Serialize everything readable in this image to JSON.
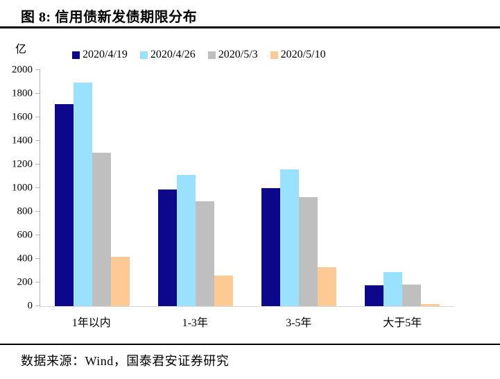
{
  "page": {
    "title": "图 8: 信用债新发债期限分布",
    "source_note": "数据来源：Wind，国泰君安证券研究"
  },
  "chart_data": {
    "type": "bar",
    "title": "信用债新发债期限分布",
    "unit_label": "亿",
    "categories": [
      "1年以内",
      "1-3年",
      "3-5年",
      "大于5年"
    ],
    "series": [
      {
        "name": "2020/4/19",
        "color": "#0d078c",
        "values": [
          1710,
          990,
          1000,
          175
        ]
      },
      {
        "name": "2020/4/26",
        "color": "#9ae1fd",
        "values": [
          1895,
          1110,
          1160,
          290
        ]
      },
      {
        "name": "2020/5/3",
        "color": "#bfbfbf",
        "values": [
          1300,
          890,
          925,
          185
        ]
      },
      {
        "name": "2020/5/10",
        "color": "#fdc994",
        "values": [
          420,
          260,
          330,
          20
        ]
      }
    ],
    "ylim": [
      0,
      2000
    ],
    "ytick_step": 200,
    "xlabel": "",
    "ylabel": "亿",
    "legend_position": "top",
    "grid": false,
    "axis_color": "#b3b3b3"
  }
}
